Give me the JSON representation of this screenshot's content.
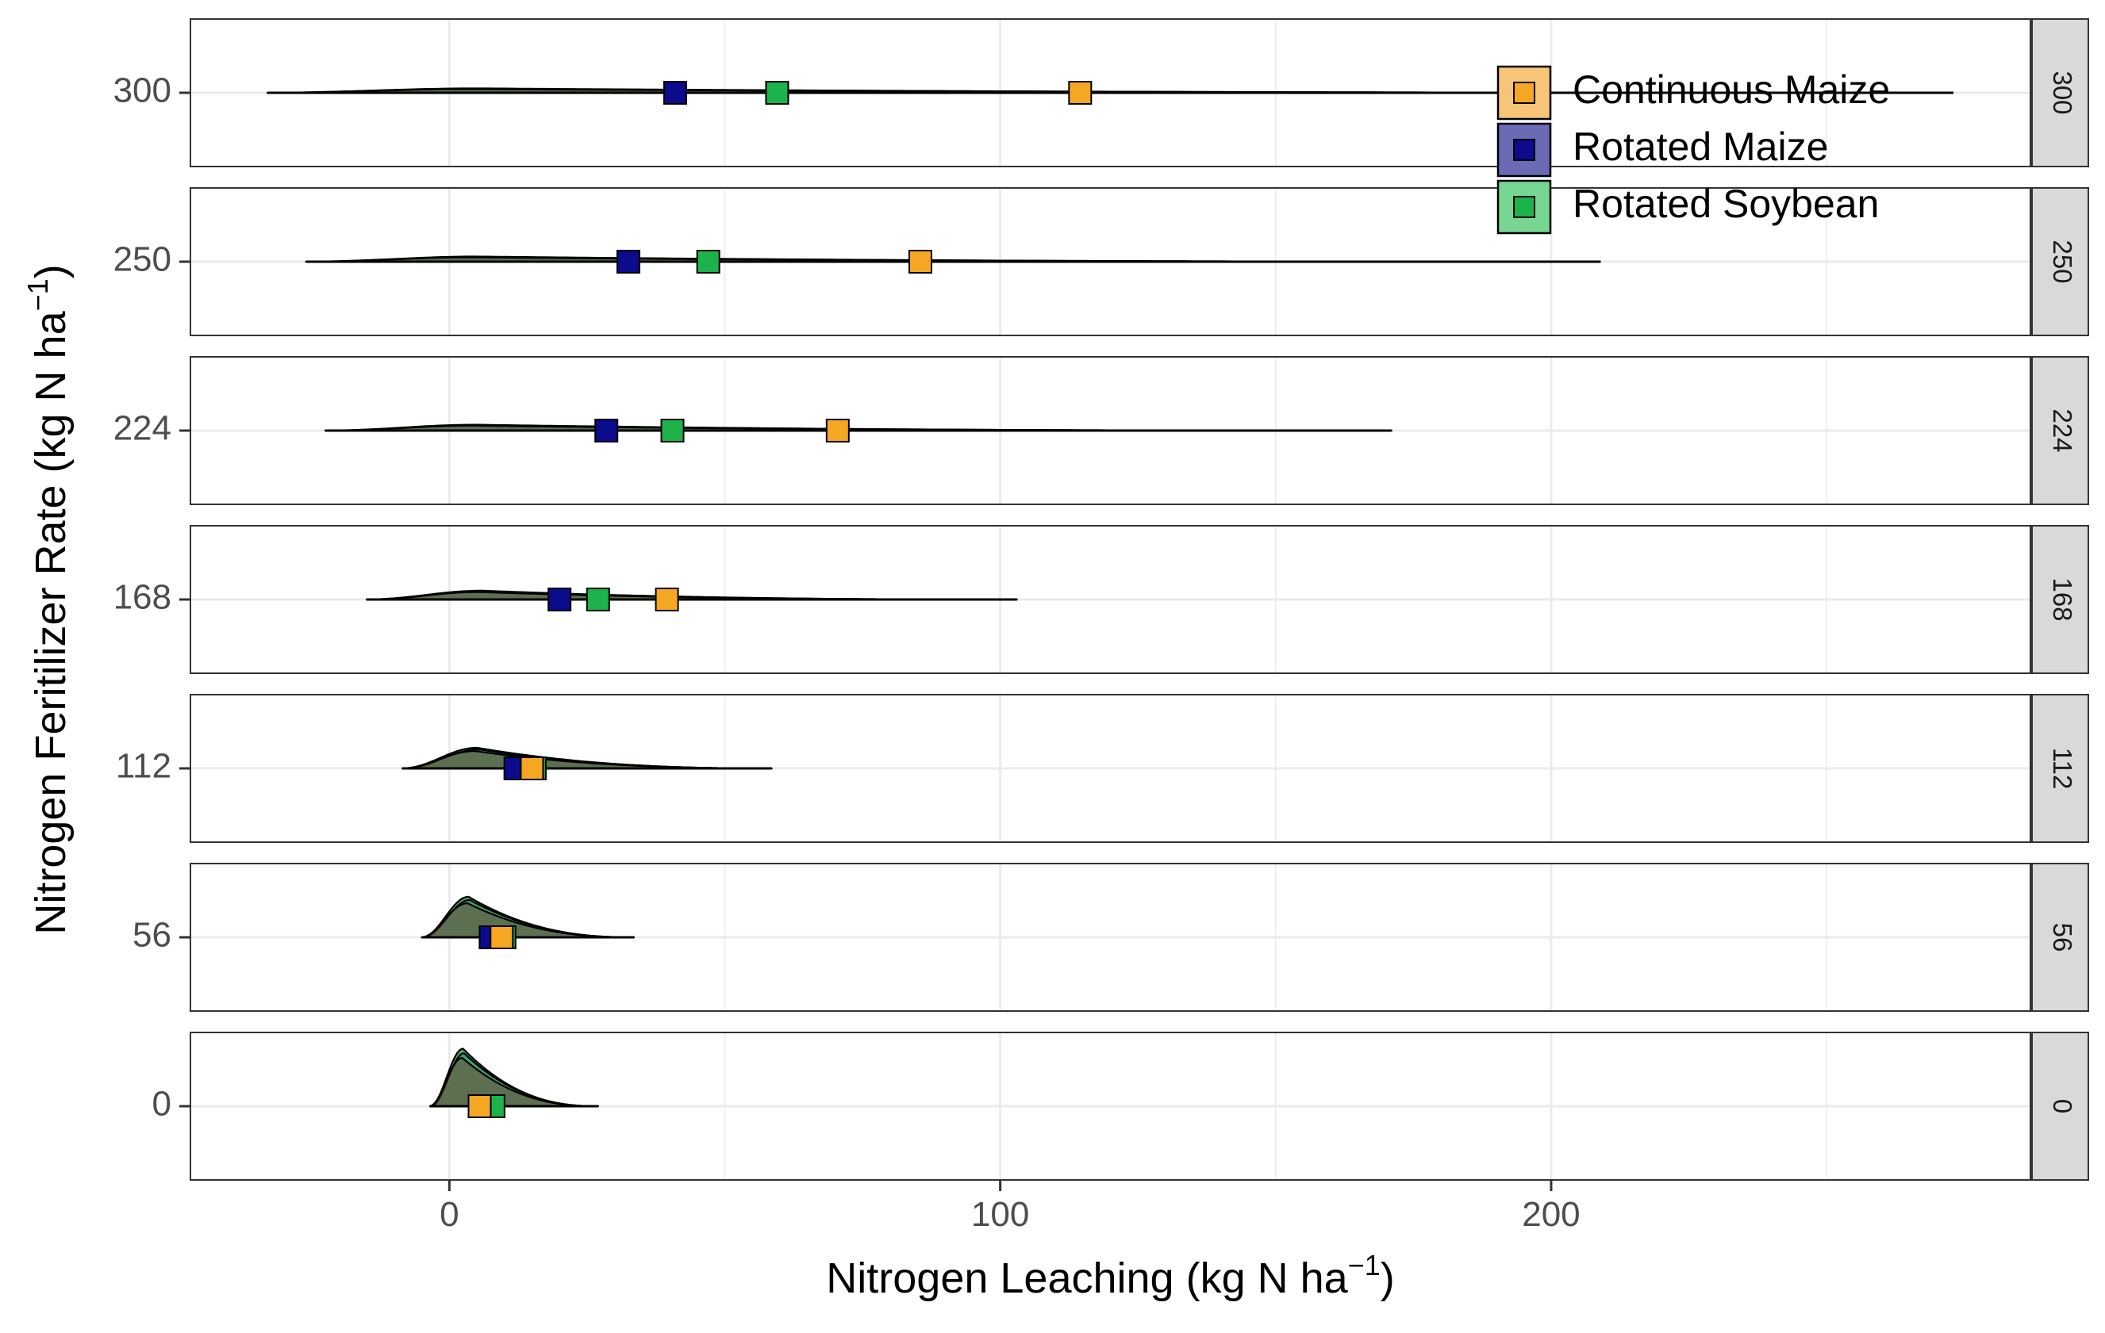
{
  "chart_data": {
    "type": "ridgeline",
    "xlabel": "Nitrogen Leaching",
    "xlabel_unit": "(kg N ha",
    "xlabel_unit_sup": "−1",
    "xlabel_unit_close": ")",
    "ylabel": "Nitrogen Feritilizer Rate",
    "ylabel_unit": "(kg N ha",
    "ylabel_unit_sup": "−1",
    "ylabel_unit_close": ")",
    "xlim": [
      -47,
      287
    ],
    "x_ticks": [
      0,
      100,
      200
    ],
    "x_tick_labels": [
      "0",
      "100",
      "200"
    ],
    "grid": true,
    "legend_position": "top-right",
    "colors": {
      "Continuous Maize": "#f5a623",
      "Rotated Maize": "#0b0b8c",
      "Rotated Soybean": "#1db34a",
      "legend_fill": {
        "Continuous Maize": "#f7c577",
        "Rotated Maize": "#6a6ab5",
        "Rotated Soybean": "#77d692"
      },
      "strip_fill": "#d9d9d9",
      "grid": "#ebebeb",
      "density_fill": "#2e8b57"
    },
    "legend": [
      "Continuous Maize",
      "Rotated Maize",
      "Rotated Soybean"
    ],
    "panels": [
      {
        "strip_label": "300",
        "y_tick_label": "300",
        "range": [
          -33,
          273
        ],
        "peak": 5,
        "height": 0.06,
        "means": {
          "Continuous Maize": 114.5,
          "Rotated Maize": 41,
          "Rotated Soybean": 59.5
        }
      },
      {
        "strip_label": "250",
        "y_tick_label": "250",
        "range": [
          -26,
          209
        ],
        "peak": 5,
        "height": 0.07,
        "means": {
          "Continuous Maize": 85.5,
          "Rotated Maize": 32.5,
          "Rotated Soybean": 47
        }
      },
      {
        "strip_label": "224",
        "y_tick_label": "224",
        "range": [
          -22.5,
          171
        ],
        "peak": 5,
        "height": 0.08,
        "means": {
          "Continuous Maize": 70.5,
          "Rotated Maize": 28.5,
          "Rotated Soybean": 40.5
        }
      },
      {
        "strip_label": "168",
        "y_tick_label": "168",
        "range": [
          -15,
          103
        ],
        "peak": 6,
        "height": 0.12,
        "means": {
          "Continuous Maize": 39.5,
          "Rotated Maize": 20,
          "Rotated Soybean": 27
        }
      },
      {
        "strip_label": "112",
        "y_tick_label": "112",
        "range": [
          -8.5,
          58.5
        ],
        "peak": 5,
        "height": 0.28,
        "means": {
          "Continuous Maize": 15,
          "Rotated Maize": 12,
          "Rotated Soybean": 15.5
        }
      },
      {
        "strip_label": "56",
        "y_tick_label": "56",
        "range": [
          -5,
          33.5
        ],
        "peak": 3.5,
        "height": 0.55,
        "means": {
          "Continuous Maize": 9.5,
          "Rotated Maize": 7.5,
          "Rotated Soybean": 10
        }
      },
      {
        "strip_label": "0",
        "y_tick_label": "0",
        "range": [
          -3.5,
          27
        ],
        "peak": 2.5,
        "height": 0.78,
        "means": {
          "Continuous Maize": 5.5,
          "Rotated Maize": 7,
          "Rotated Soybean": 8
        }
      }
    ]
  }
}
